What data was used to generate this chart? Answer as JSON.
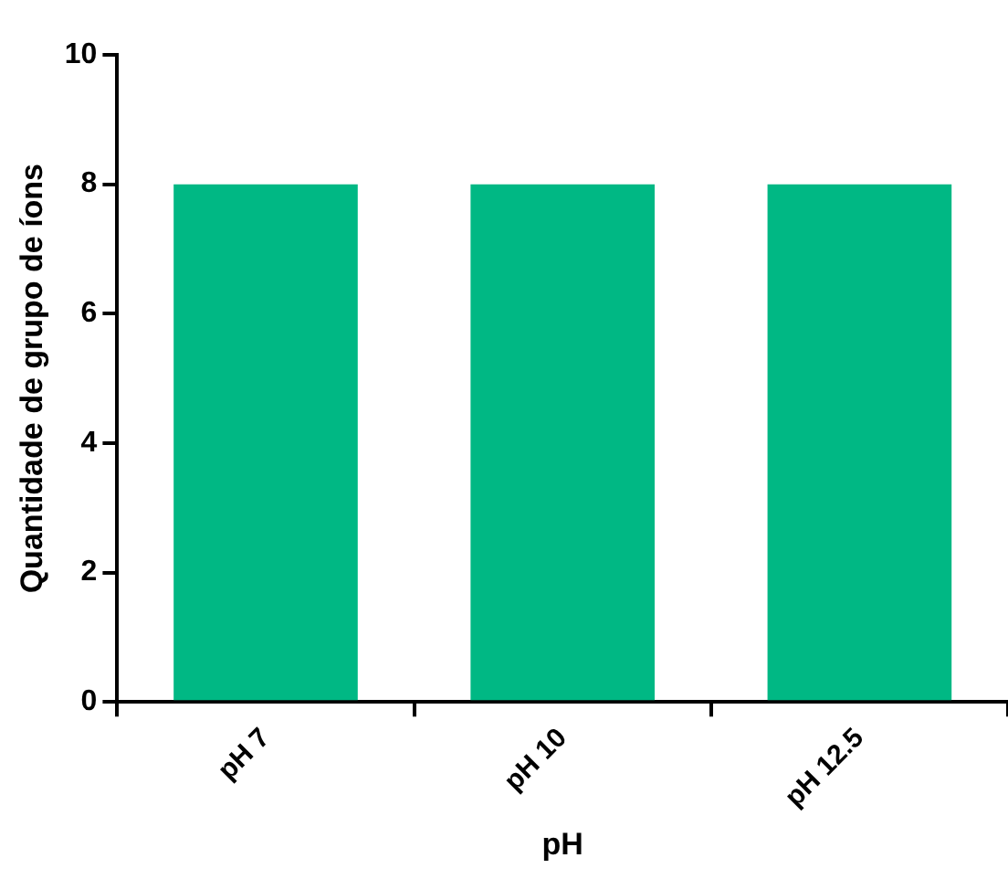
{
  "chart_data": {
    "type": "bar",
    "xlabel": "pH",
    "ylabel": "Quantidade de grupo de íons",
    "categories": [
      "pH 7",
      "pH 10",
      "pH 12.5"
    ],
    "values": [
      8,
      8,
      8
    ],
    "color": "#00b884",
    "ylim": [
      0,
      10
    ],
    "yticks": [
      0,
      2,
      4,
      6,
      8,
      10
    ],
    "grid": false,
    "legend": false
  }
}
